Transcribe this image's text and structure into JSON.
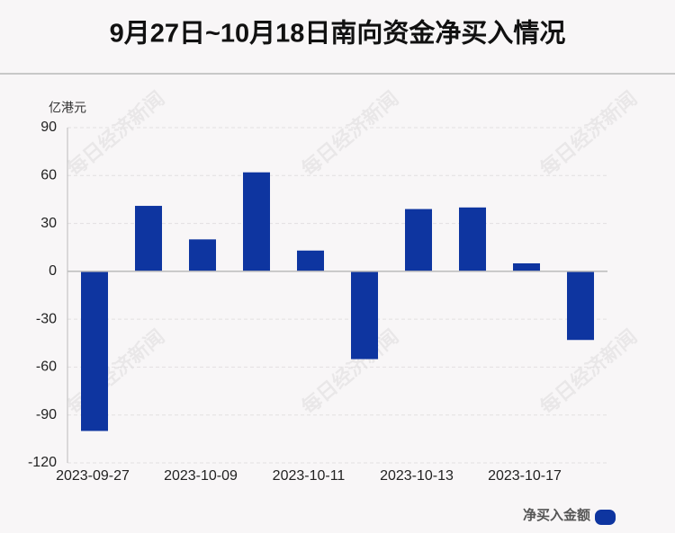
{
  "chart_data": {
    "type": "bar",
    "title": "9月27日~10月18日南向资金净买入情况",
    "y_label": "亿港元",
    "watermark": "每日经济新闻",
    "categories": [
      "2023-09-27",
      null,
      "2023-10-09",
      null,
      "2023-10-11",
      null,
      "2023-10-13",
      null,
      "2023-10-17",
      null
    ],
    "series": [
      {
        "name": "净买入金额",
        "color": "#0e35a0",
        "values": [
          -100,
          41,
          20,
          62,
          13,
          -55,
          39,
          40,
          5,
          -43
        ]
      }
    ],
    "ylim": [
      -120,
      90
    ],
    "yticks": [
      -120,
      -90,
      -60,
      -30,
      0,
      30,
      60,
      90
    ],
    "grid": true,
    "legend": "bottom-right"
  }
}
